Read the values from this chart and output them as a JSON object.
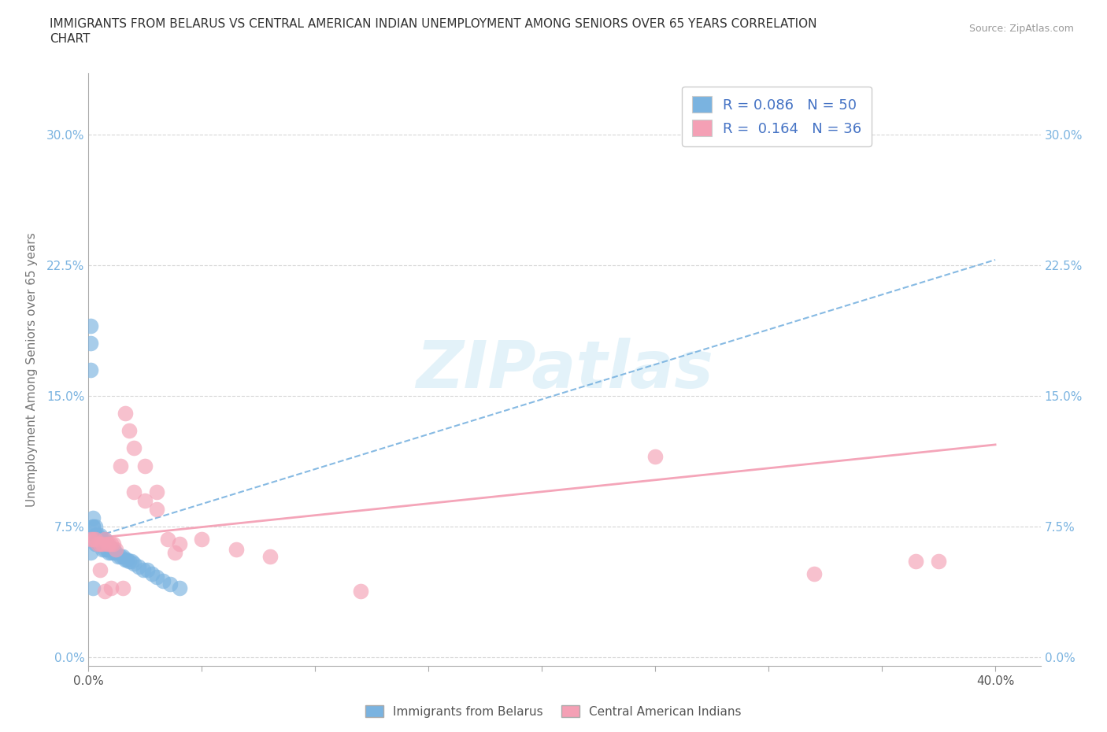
{
  "title_line1": "IMMIGRANTS FROM BELARUS VS CENTRAL AMERICAN INDIAN UNEMPLOYMENT AMONG SENIORS OVER 65 YEARS CORRELATION",
  "title_line2": "CHART",
  "source": "Source: ZipAtlas.com",
  "ylabel": "Unemployment Among Seniors over 65 years",
  "xlim": [
    0.0,
    0.42
  ],
  "ylim": [
    -0.005,
    0.335
  ],
  "xtick_positions": [
    0.0,
    0.05,
    0.1,
    0.15,
    0.2,
    0.25,
    0.3,
    0.35,
    0.4
  ],
  "ytick_positions": [
    0.0,
    0.075,
    0.15,
    0.225,
    0.3
  ],
  "ytick_labels": [
    "0.0%",
    "7.5%",
    "15.0%",
    "22.5%",
    "30.0%"
  ],
  "color_blue": "#7ab3e0",
  "color_pink": "#f4a0b5",
  "R_blue": "0.086",
  "N_blue": "50",
  "R_pink": "0.164",
  "N_pink": "36",
  "watermark": "ZIPatlas",
  "legend_label_blue": "Immigrants from Belarus",
  "legend_label_pink": "Central American Indians",
  "trendline_blue_x0": 0.0,
  "trendline_blue_y0": 0.068,
  "trendline_blue_x1": 0.4,
  "trendline_blue_y1": 0.228,
  "trendline_pink_x0": 0.0,
  "trendline_pink_y0": 0.068,
  "trendline_pink_x1": 0.4,
  "trendline_pink_y1": 0.122,
  "blue_x": [
    0.001,
    0.001,
    0.001,
    0.002,
    0.002,
    0.002,
    0.003,
    0.003,
    0.003,
    0.003,
    0.004,
    0.004,
    0.004,
    0.005,
    0.005,
    0.005,
    0.005,
    0.006,
    0.006,
    0.006,
    0.007,
    0.007,
    0.007,
    0.008,
    0.008,
    0.009,
    0.009,
    0.01,
    0.01,
    0.011,
    0.011,
    0.012,
    0.013,
    0.014,
    0.015,
    0.016,
    0.017,
    0.018,
    0.019,
    0.02,
    0.022,
    0.024,
    0.026,
    0.028,
    0.03,
    0.033,
    0.036,
    0.04,
    0.001,
    0.002
  ],
  "blue_y": [
    0.19,
    0.165,
    0.18,
    0.075,
    0.075,
    0.08,
    0.07,
    0.07,
    0.075,
    0.065,
    0.065,
    0.07,
    0.068,
    0.065,
    0.068,
    0.07,
    0.065,
    0.062,
    0.065,
    0.068,
    0.062,
    0.065,
    0.068,
    0.062,
    0.065,
    0.06,
    0.063,
    0.06,
    0.063,
    0.06,
    0.062,
    0.06,
    0.058,
    0.058,
    0.058,
    0.056,
    0.056,
    0.055,
    0.055,
    0.054,
    0.052,
    0.05,
    0.05,
    0.048,
    0.046,
    0.044,
    0.042,
    0.04,
    0.06,
    0.04
  ],
  "pink_x": [
    0.001,
    0.002,
    0.003,
    0.004,
    0.005,
    0.006,
    0.007,
    0.008,
    0.009,
    0.01,
    0.011,
    0.012,
    0.014,
    0.016,
    0.018,
    0.02,
    0.025,
    0.03,
    0.035,
    0.04,
    0.05,
    0.065,
    0.08,
    0.02,
    0.025,
    0.03,
    0.25,
    0.32,
    0.365,
    0.375,
    0.005,
    0.007,
    0.01,
    0.015,
    0.038,
    0.12
  ],
  "pink_y": [
    0.068,
    0.068,
    0.068,
    0.065,
    0.065,
    0.065,
    0.068,
    0.065,
    0.065,
    0.065,
    0.065,
    0.062,
    0.11,
    0.14,
    0.13,
    0.095,
    0.09,
    0.085,
    0.068,
    0.065,
    0.068,
    0.062,
    0.058,
    0.12,
    0.11,
    0.095,
    0.115,
    0.048,
    0.055,
    0.055,
    0.05,
    0.038,
    0.04,
    0.04,
    0.06,
    0.038
  ]
}
